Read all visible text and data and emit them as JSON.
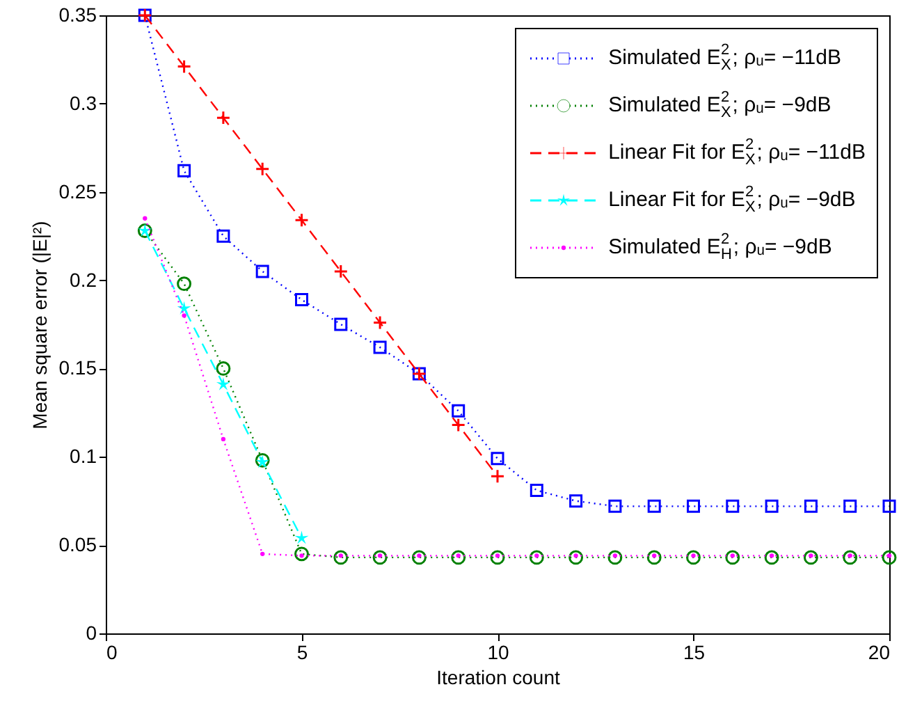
{
  "chart_data": {
    "type": "line",
    "xlabel": "Iteration count",
    "ylabel": "Mean square error (|E|²)",
    "x": [
      1,
      2,
      3,
      4,
      5,
      6,
      7,
      8,
      9,
      10,
      11,
      12,
      13,
      14,
      15,
      16,
      17,
      18,
      19,
      20
    ],
    "xlim": [
      0,
      20
    ],
    "xticks": [
      0,
      5,
      10,
      15,
      20
    ],
    "ylim": [
      0,
      0.35
    ],
    "yticks": [
      0,
      0.05,
      0.1,
      0.15,
      0.2,
      0.25,
      0.3,
      0.35
    ],
    "legend": "top right",
    "series": [
      {
        "name": "Simulated E$^{2}$$_{X}$; ρᵤ= −11dB",
        "color": "#0000ff",
        "marker": "square",
        "line_style": "dotted",
        "values": [
          0.35,
          0.262,
          0.225,
          0.205,
          0.189,
          0.175,
          0.162,
          0.147,
          0.126,
          0.099,
          0.081,
          0.075,
          0.072,
          0.072,
          0.072,
          0.072,
          0.072,
          0.072,
          0.072,
          0.072
        ]
      },
      {
        "name": "Simulated E$^{2}$$_{X}$; ρᵤ= −9dB",
        "color": "#008000",
        "marker": "circle",
        "line_style": "dotted",
        "values": [
          0.228,
          0.198,
          0.15,
          0.098,
          0.045,
          0.043,
          0.043,
          0.043,
          0.043,
          0.043,
          0.043,
          0.043,
          0.043,
          0.043,
          0.043,
          0.043,
          0.043,
          0.043,
          0.043,
          0.043
        ]
      },
      {
        "name": "Linear Fit for E$^{2}$$_{X}$; ρᵤ= −11dB",
        "color": "#ff0000",
        "marker": "cross",
        "line_style": "dashed",
        "x": [
          1,
          2,
          3,
          4,
          5,
          6,
          7,
          8,
          9,
          10
        ],
        "values": [
          0.35,
          0.321,
          0.292,
          0.263,
          0.234,
          0.205,
          0.176,
          0.147,
          0.118,
          0.089
        ]
      },
      {
        "name": "Linear Fit for E$^{2}$$_{X}$; ρᵤ= −9dB",
        "color": "#00ffff",
        "marker": "star",
        "line_style": "dashed",
        "x": [
          1,
          2,
          3,
          4,
          5
        ],
        "values": [
          0.228,
          0.184,
          0.141,
          0.097,
          0.054
        ]
      },
      {
        "name": "Simulated E$^{2}$$_{H}$; ρᵤ= −9dB",
        "color": "#ff00ff",
        "marker": "point",
        "line_style": "dotted",
        "values": [
          0.235,
          0.18,
          0.11,
          0.045,
          0.044,
          0.044,
          0.044,
          0.044,
          0.044,
          0.044,
          0.044,
          0.044,
          0.044,
          0.044,
          0.044,
          0.044,
          0.044,
          0.044,
          0.044,
          0.044
        ]
      }
    ]
  }
}
